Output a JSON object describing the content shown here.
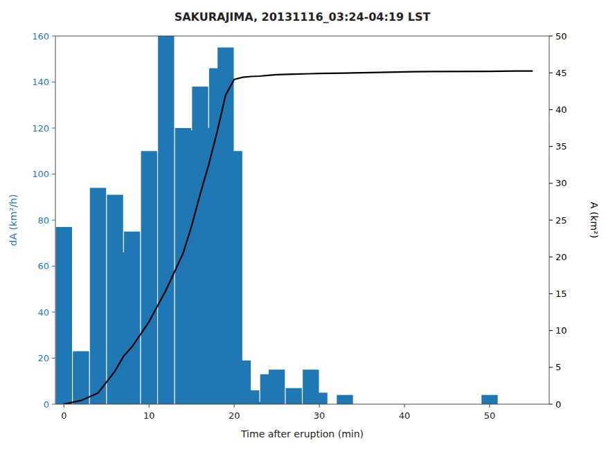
{
  "chart_data": {
    "type": "bar",
    "title": "SAKURAJIMA, 20131116_03:24-04:19 LST",
    "xlabel": "Time after eruption (min)",
    "ylabel": "dA (km²/h)",
    "y2label": "A (km²)",
    "x": [
      0,
      2,
      4,
      6,
      7,
      8,
      10,
      12,
      14,
      15,
      16,
      17,
      18,
      19,
      20,
      21,
      22,
      23,
      24,
      25,
      27,
      29,
      30,
      33,
      35,
      37,
      39,
      41,
      43,
      50,
      53,
      55
    ],
    "series": [
      {
        "type": "bar",
        "color": "#1f77b4",
        "values": [
          77,
          23,
          94,
          91,
          66,
          75,
          110,
          160,
          120,
          119,
          138,
          120,
          146,
          155,
          110,
          19,
          6,
          1,
          13,
          15,
          7,
          15,
          5,
          4,
          0,
          0,
          0,
          0,
          0,
          4,
          0,
          0
        ]
      },
      {
        "type": "line",
        "color": "#000000",
        "axis": "y2",
        "values": [
          0,
          0.5,
          1.5,
          4.5,
          6.5,
          7.8,
          11.2,
          15.5,
          20.5,
          24.2,
          28.5,
          32.5,
          37.0,
          42.0,
          44.1,
          44.4,
          44.5,
          44.55,
          44.65,
          44.75,
          44.82,
          44.88,
          44.92,
          44.96,
          45.0,
          45.05,
          45.1,
          45.15,
          45.18,
          45.2,
          45.25,
          45.25
        ]
      }
    ],
    "xlim": [
      -1,
      57
    ],
    "ylim": [
      0,
      160
    ],
    "y2lim": [
      0,
      50
    ],
    "xticks": [
      0,
      10,
      20,
      30,
      40,
      50
    ],
    "yticks": [
      0,
      20,
      40,
      60,
      80,
      100,
      120,
      140,
      160
    ],
    "y2ticks": [
      0,
      5,
      10,
      15,
      20,
      25,
      30,
      35,
      40,
      45,
      50
    ],
    "grid": false
  }
}
